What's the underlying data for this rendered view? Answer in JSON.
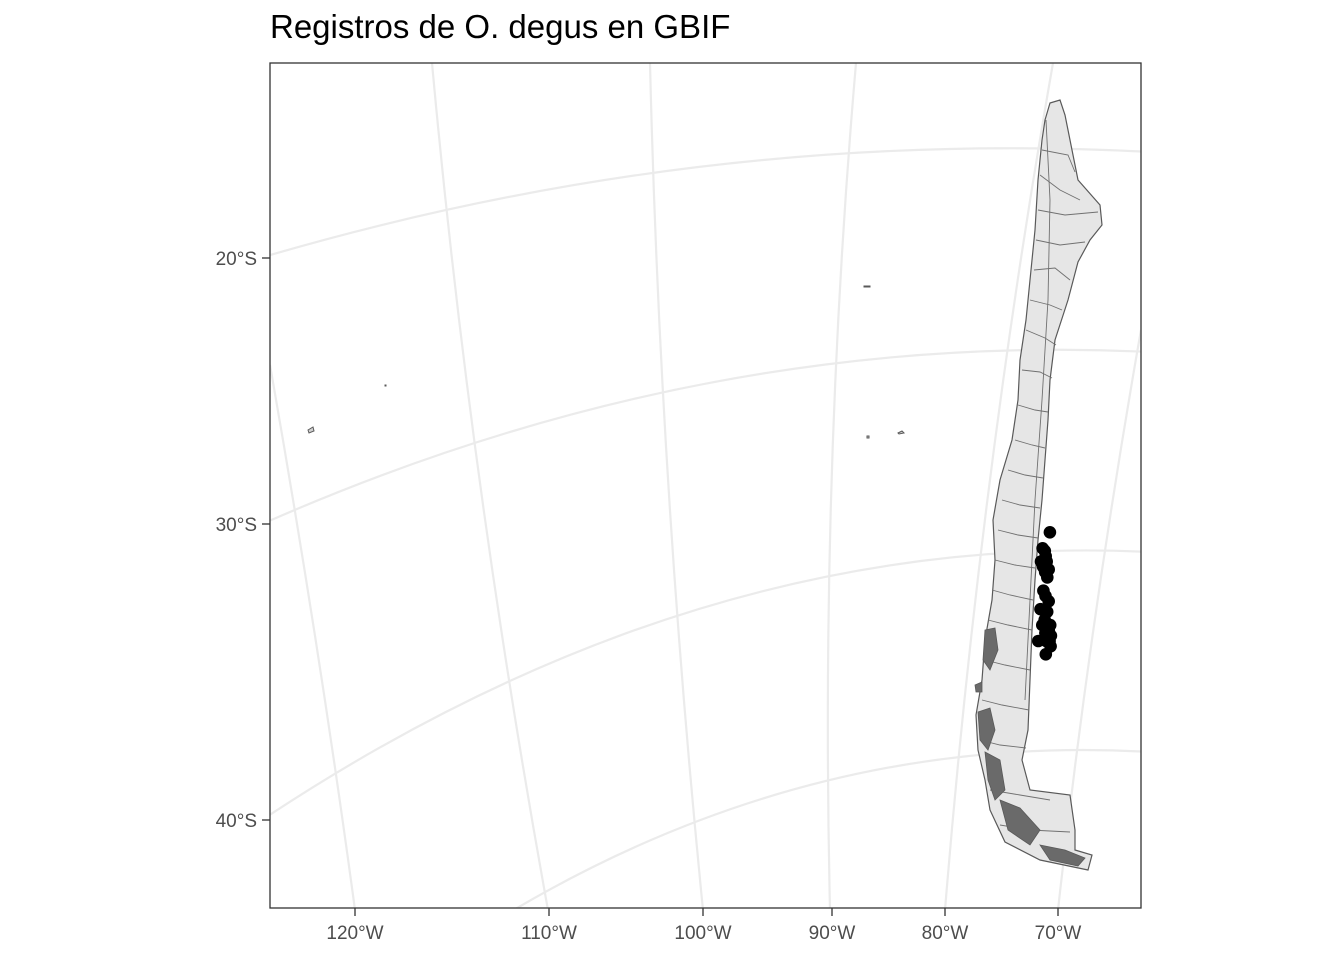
{
  "title": "Registros de O. degus en GBIF",
  "colors": {
    "grid": "#ebebeb",
    "panel_border": "#333333",
    "land_fill": "#e6e6e6",
    "land_border": "#595959",
    "points": "#000000",
    "tick_text": "#4d4d4d"
  },
  "chart_data": {
    "type": "scatter",
    "title": "Registros de O. degus en GBIF",
    "xlabel": "",
    "ylabel": "",
    "grid": true,
    "x_ticks": [
      "120°W",
      "110°W",
      "100°W",
      "90°W",
      "80°W",
      "70°W"
    ],
    "y_ticks": [
      "20°S",
      "30°S",
      "40°S"
    ],
    "points": [
      {
        "lon": -70.9,
        "lat": -29.9
      },
      {
        "lon": -71.5,
        "lat": -30.5
      },
      {
        "lon": -71.3,
        "lat": -30.6
      },
      {
        "lon": -71.2,
        "lat": -30.8
      },
      {
        "lon": -71.1,
        "lat": -31.0
      },
      {
        "lon": -71.6,
        "lat": -31.0
      },
      {
        "lon": -71.4,
        "lat": -31.2
      },
      {
        "lon": -71.2,
        "lat": -31.4
      },
      {
        "lon": -70.9,
        "lat": -31.3
      },
      {
        "lon": -71.0,
        "lat": -31.6
      },
      {
        "lon": -71.3,
        "lat": -32.1
      },
      {
        "lon": -71.1,
        "lat": -32.3
      },
      {
        "lon": -70.8,
        "lat": -32.5
      },
      {
        "lon": -71.5,
        "lat": -32.8
      },
      {
        "lon": -70.9,
        "lat": -32.9
      },
      {
        "lon": -71.1,
        "lat": -33.2
      },
      {
        "lon": -71.3,
        "lat": -33.4
      },
      {
        "lon": -70.9,
        "lat": -33.5
      },
      {
        "lon": -70.6,
        "lat": -33.4
      },
      {
        "lon": -70.7,
        "lat": -33.6
      },
      {
        "lon": -71.0,
        "lat": -33.7
      },
      {
        "lon": -70.5,
        "lat": -33.8
      },
      {
        "lon": -70.6,
        "lat": -34.0
      },
      {
        "lon": -71.6,
        "lat": -34.0
      },
      {
        "lon": -70.9,
        "lat": -34.0
      },
      {
        "lon": -70.5,
        "lat": -34.2
      },
      {
        "lon": -70.9,
        "lat": -34.5
      }
    ]
  }
}
